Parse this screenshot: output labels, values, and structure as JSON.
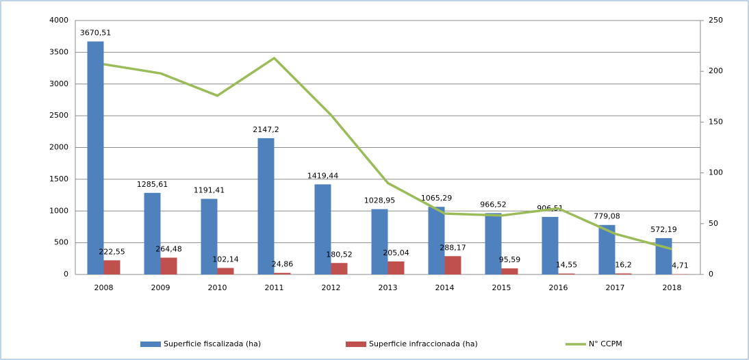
{
  "chart_data": {
    "type": "bar",
    "categories": [
      "2008",
      "2009",
      "2010",
      "2011",
      "2012",
      "2013",
      "2014",
      "2015",
      "2016",
      "2017",
      "2018"
    ],
    "series": [
      {
        "name": "Superficie fiscalizada (ha)",
        "color": "#4f81bd",
        "type": "bar",
        "values": [
          3670.51,
          1285.61,
          1191.41,
          2147.2,
          1419.44,
          1028.95,
          1065.29,
          966.52,
          906.51,
          779.08,
          572.19
        ],
        "value_labels": [
          "3670,51",
          "1285,61",
          "1191,41",
          "2147,2",
          "1419,44",
          "1028,95",
          "1065,29",
          "966,52",
          "906,51",
          "779,08",
          "572,19"
        ]
      },
      {
        "name": "Superficie infraccionada (ha)",
        "color": "#c0504d",
        "type": "bar",
        "values": [
          222.55,
          264.48,
          102.14,
          24.86,
          180.52,
          205.04,
          288.17,
          95.59,
          14.55,
          16.2,
          4.71
        ],
        "value_labels": [
          "222,55",
          "264,48",
          "102,14",
          "24,86",
          "180,52",
          "205,04",
          "288,17",
          "95,59",
          "14,55",
          "16,2",
          "4,71"
        ]
      },
      {
        "name": "N° CCPM",
        "color": "#9bbb59",
        "type": "line",
        "axis": "y2",
        "values": [
          207,
          198,
          176,
          213,
          157,
          90,
          60,
          58,
          65,
          40,
          25
        ]
      }
    ],
    "ylim": [
      0,
      4000
    ],
    "yticks": [
      0,
      500,
      1000,
      1500,
      2000,
      2500,
      3000,
      3500,
      4000
    ],
    "y2lim": [
      0,
      250
    ],
    "y2ticks": [
      0,
      50,
      100,
      150,
      200,
      250
    ],
    "grid": true,
    "legend": "bottom"
  }
}
